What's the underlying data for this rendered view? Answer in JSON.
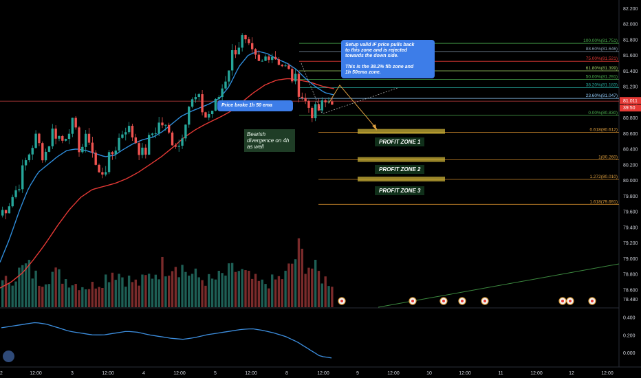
{
  "colors": {
    "bg": "#000000",
    "up": "#26a69a",
    "down": "#ef5350",
    "ema_fast": "#2f8ddb",
    "ema_slow": "#e53935",
    "fib_green": "#4caf50",
    "fib_orange": "#c7852a",
    "zone": "#c9b037",
    "osc": "#3d8fe0",
    "axis_text": "#d1d4dc",
    "note_blue": "#3d7de8",
    "note_green": "#1f3d26"
  },
  "price_axis": {
    "ticks": [
      "82.200",
      "82.000",
      "81.800",
      "81.600",
      "81.400",
      "81.200",
      "81.000",
      "80.800",
      "80.600",
      "80.400",
      "80.200",
      "80.000",
      "79.800",
      "79.600",
      "79.400",
      "79.200",
      "79.000",
      "78.800",
      "78.600",
      "78.480"
    ],
    "current_price": "81.011",
    "countdown": "39:50"
  },
  "osc_axis": {
    "ticks": [
      "0.400",
      "0.200",
      "0.000"
    ]
  },
  "time_axis": {
    "labels": [
      "2",
      "12:00",
      "3",
      "12:00",
      "4",
      "12:00",
      "5",
      "12:00",
      "8",
      "12:00",
      "9",
      "12:00",
      "10",
      "12:00",
      "11",
      "12:00",
      "12",
      "12:00"
    ]
  },
  "fib_levels": [
    {
      "text": "100.00%(81.751)",
      "price": 81.751,
      "color": "#4caf50"
    },
    {
      "text": "88.60%(81.646)",
      "price": 81.646,
      "color": "#8aa0b4"
    },
    {
      "text": "75.00%(81.521)",
      "price": 81.521,
      "color": "#e53935"
    },
    {
      "text": "61.80%(81.399)",
      "price": 81.399,
      "color": "#9ccc65"
    },
    {
      "text": "50.00%(81.291)",
      "price": 81.291,
      "color": "#4caf50"
    },
    {
      "text": "38.20%(81.183)",
      "price": 81.183,
      "color": "#26a69a"
    },
    {
      "text": "23.60%(81.047)",
      "price": 81.047,
      "color": "#90caf9"
    },
    {
      "text": "0.00%(80.830)",
      "price": 80.83,
      "color": "#4caf50"
    }
  ],
  "ext_levels": [
    {
      "text": "0.618(80.612)",
      "price": 80.612
    },
    {
      "text": "1(80.260)",
      "price": 80.26
    },
    {
      "text": "1.272(80.010)",
      "price": 80.01
    },
    {
      "text": "1.618(79.691)",
      "price": 79.691
    }
  ],
  "annotations": {
    "setup": "Setup valid IF price pulls back\nto this zone and is rejected\ntowards the down side.\n\nThis is the 38.2% fib zone and\n1h 50ema zone.",
    "broke": "Price broke 1h 50 ema",
    "divergence": "Bearish\ndivergence on 4h\nas well",
    "zone1": "PROFIT ZONE 1",
    "zone2": "PROFIT ZONE 2",
    "zone3": "PROFIT ZONE 3"
  },
  "chart_data": {
    "type": "candlestick",
    "series": [
      {
        "name": "price",
        "type": "candlestick"
      },
      {
        "name": "ema_fast",
        "type": "line"
      },
      {
        "name": "ema_slow",
        "type": "line"
      },
      {
        "name": "volume",
        "type": "bar"
      },
      {
        "name": "oscillator",
        "type": "line"
      }
    ],
    "ylim": [
      78.48,
      82.2
    ],
    "osc_ylim": [
      -0.1,
      0.45
    ],
    "price_path": [
      79.55,
      79.7,
      79.9,
      80.25,
      80.55,
      80.3,
      80.65,
      80.5,
      80.75,
      80.4,
      80.55,
      80.05,
      80.2,
      80.45,
      80.7,
      80.55,
      80.3,
      80.6,
      80.75,
      80.55,
      80.45,
      80.95,
      81.05,
      80.8,
      80.95,
      81.25,
      81.65,
      81.8,
      81.6,
      81.45,
      81.65,
      81.55,
      81.4,
      81.25,
      81.0,
      80.85,
      80.95,
      81.05
    ],
    "ema_fast_path": [
      78.95,
      79.25,
      79.6,
      79.9,
      80.1,
      80.2,
      80.3,
      80.38,
      80.4,
      80.38,
      80.34,
      80.3,
      80.32,
      80.4,
      80.47,
      80.52,
      80.55,
      80.62,
      80.72,
      80.82,
      80.88,
      80.93,
      80.98,
      81.05,
      81.2,
      81.45,
      81.6,
      81.65,
      81.62,
      81.55,
      81.5,
      81.42,
      81.3,
      81.2,
      81.12,
      81.09
    ],
    "ema_slow_path": [
      78.62,
      78.7,
      78.82,
      79.0,
      79.2,
      79.42,
      79.62,
      79.78,
      79.88,
      79.92,
      79.96,
      80.02,
      80.1,
      80.2,
      80.3,
      80.42,
      80.55,
      80.65,
      80.73,
      80.8,
      80.88,
      81.0,
      81.12,
      81.22,
      81.28,
      81.3,
      81.28,
      81.25,
      81.2,
      81.17
    ],
    "volume_profile": [
      0.3,
      0.45,
      0.6,
      0.35,
      0.5,
      0.4,
      0.3,
      0.25,
      0.35,
      0.55,
      0.4,
      0.3,
      0.45,
      0.6,
      0.7,
      0.5,
      0.4,
      0.35,
      0.45,
      0.55,
      0.4,
      0.3,
      0.35,
      0.45,
      0.85,
      0.6,
      0.4,
      0.3
    ],
    "osc_path": [
      0.28,
      0.3,
      0.32,
      0.34,
      0.32,
      0.28,
      0.24,
      0.22,
      0.2,
      0.2,
      0.22,
      0.24,
      0.23,
      0.2,
      0.18,
      0.16,
      0.15,
      0.17,
      0.2,
      0.22,
      0.24,
      0.26,
      0.27,
      0.25,
      0.22,
      0.18,
      0.12,
      0.04,
      -0.04,
      -0.06
    ]
  }
}
